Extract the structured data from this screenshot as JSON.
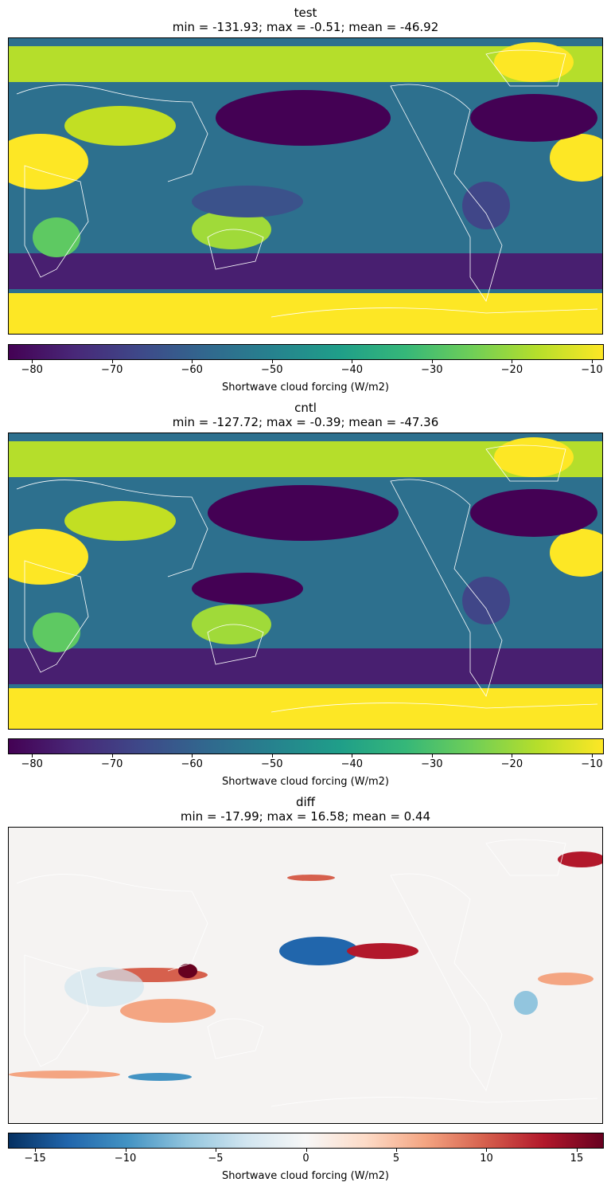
{
  "chart_data": [
    {
      "type": "heatmap",
      "title": "test",
      "subtitle": "min = -131.93; max = -0.51; mean = -46.92",
      "colormap": "viridis",
      "colorbar": {
        "label": "Shortwave cloud forcing (W/m2)",
        "range": [
          -83,
          -8.5
        ],
        "ticks": [
          -80,
          -70,
          -60,
          -50,
          -40,
          -30,
          -20,
          -10
        ]
      },
      "stats": {
        "min": -131.93,
        "max": -0.51,
        "mean": -46.92
      }
    },
    {
      "type": "heatmap",
      "title": "cntl",
      "subtitle": "min = -127.72; max = -0.39; mean = -47.36",
      "colormap": "viridis",
      "colorbar": {
        "label": "Shortwave cloud forcing (W/m2)",
        "range": [
          -83,
          -8.5
        ],
        "ticks": [
          -80,
          -70,
          -60,
          -50,
          -40,
          -30,
          -20,
          -10
        ]
      },
      "stats": {
        "min": -127.72,
        "max": -0.39,
        "mean": -47.36
      }
    },
    {
      "type": "heatmap",
      "title": "diff",
      "subtitle": "min = -17.99; max = 16.58; mean = 0.44",
      "colormap": "RdBu_r",
      "colorbar": {
        "label": "Shortwave cloud forcing (W/m2)",
        "range": [
          -16.5,
          16.5
        ],
        "ticks": [
          -15,
          -10,
          -5,
          0,
          5,
          10,
          15
        ]
      },
      "stats": {
        "min": -17.99,
        "max": 16.58,
        "mean": 0.44
      }
    }
  ]
}
